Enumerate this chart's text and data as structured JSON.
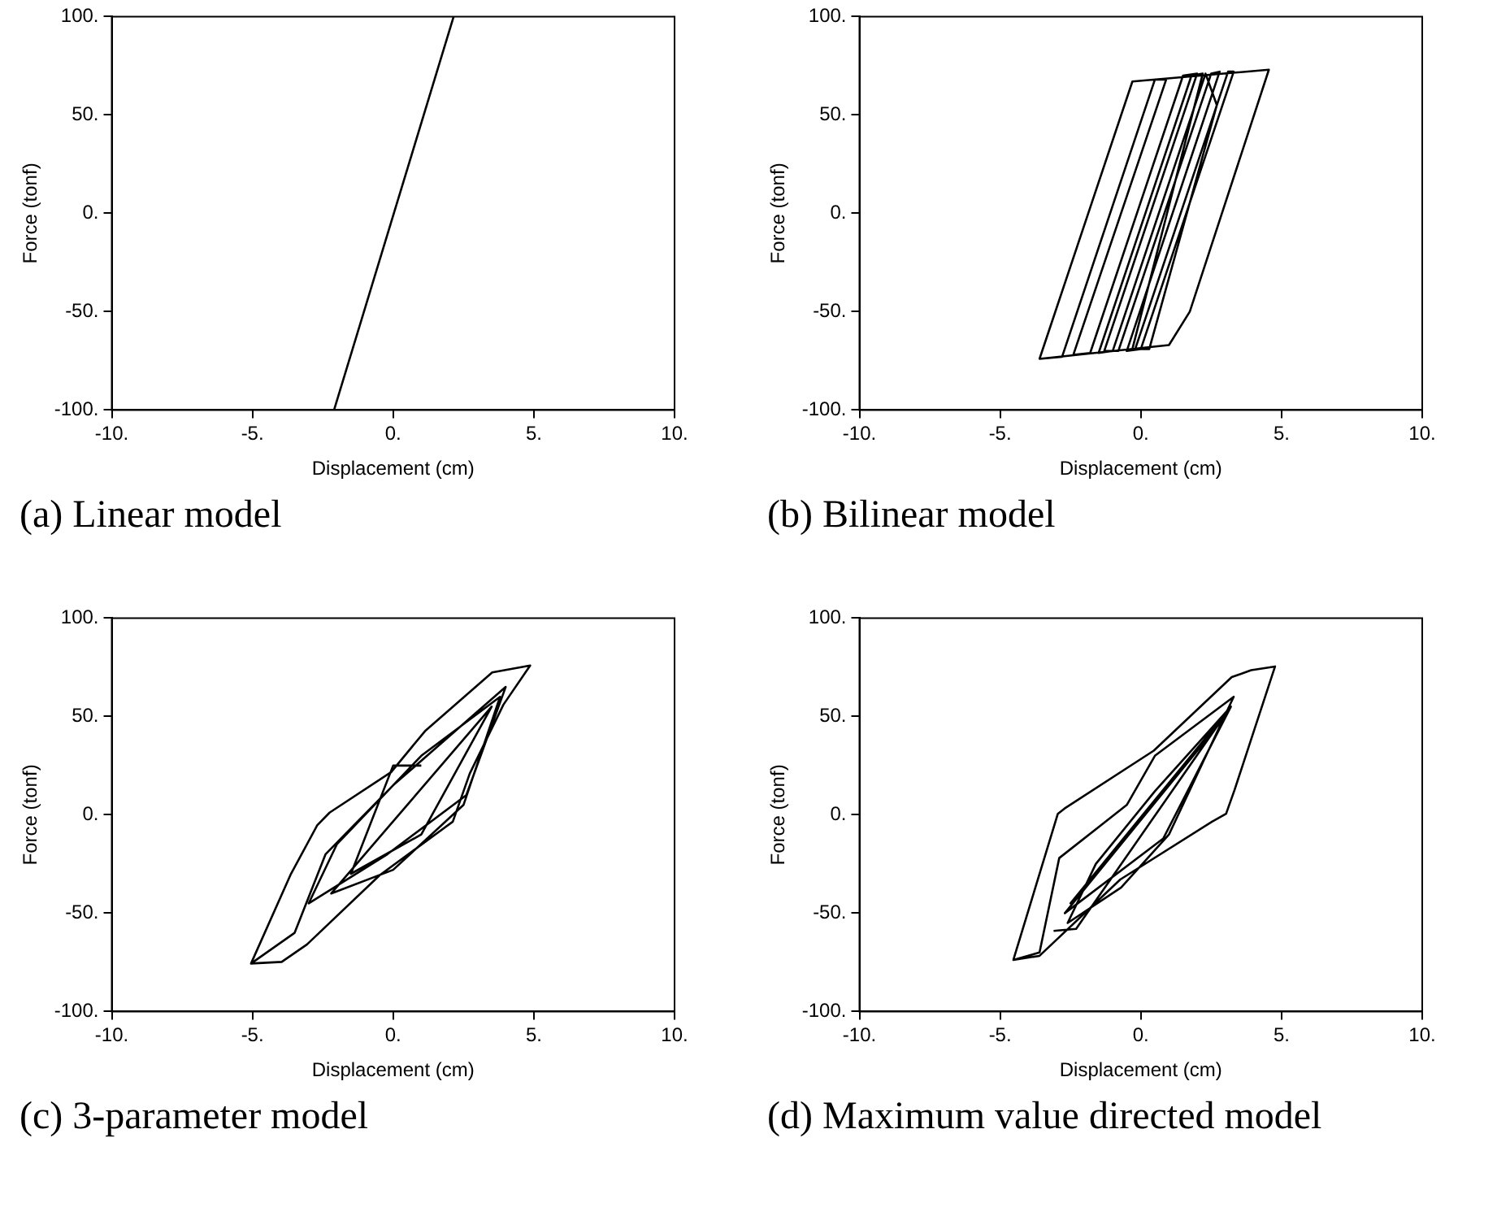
{
  "chart_data": [
    {
      "type": "line",
      "title": "(a) Linear model",
      "xlabel": "Displacement (cm)",
      "ylabel": "Force (tonf)",
      "xlim": [
        -10,
        10
      ],
      "ylim": [
        -100,
        100
      ],
      "xticks": [
        {
          "value": -10,
          "label": "-10."
        },
        {
          "value": -5,
          "label": "-5."
        },
        {
          "value": 0,
          "label": "0."
        },
        {
          "value": 5,
          "label": "5."
        },
        {
          "value": 10,
          "label": "10."
        }
      ],
      "yticks": [
        {
          "value": -100,
          "label": "-100."
        },
        {
          "value": -50,
          "label": "-50."
        },
        {
          "value": 0,
          "label": "0."
        },
        {
          "value": 50,
          "label": "50."
        },
        {
          "value": 100,
          "label": "100."
        }
      ],
      "grid": false,
      "legend": false,
      "marker": "none",
      "line_style": "solid",
      "series": [
        {
          "color": "#000000",
          "x": [
            -2.1,
            2.15
          ],
          "values": [
            -100,
            100
          ]
        }
      ]
    },
    {
      "type": "line",
      "title": "(b) Bilinear model",
      "xlabel": "Displacement (cm)",
      "ylabel": "Force (tonf)",
      "xlim": [
        -10,
        10
      ],
      "ylim": [
        -100,
        100
      ],
      "xticks": [
        {
          "value": -10,
          "label": "-10."
        },
        {
          "value": -5,
          "label": "-5."
        },
        {
          "value": 0,
          "label": "0."
        },
        {
          "value": 5,
          "label": "5."
        },
        {
          "value": 10,
          "label": "10."
        }
      ],
      "yticks": [
        {
          "value": -100,
          "label": "-100."
        },
        {
          "value": -50,
          "label": "-50."
        },
        {
          "value": 0,
          "label": "0."
        },
        {
          "value": 50,
          "label": "50."
        },
        {
          "value": 100,
          "label": "100."
        }
      ],
      "grid": false,
      "legend": false,
      "marker": "none",
      "line_style": "solid",
      "series": [
        {
          "color": "#000000",
          "x": [
            -3.6,
            -0.3,
            4.55,
            1.74,
            1.0,
            -3.6,
            -2.8,
            0.5,
            0.9,
            -2.4,
            -1.8,
            1.5,
            2.0,
            -1.3,
            -0.8,
            2.5,
            2.8,
            -0.5,
            0.0,
            3.3,
            3.1,
            -0.2,
            0.3,
            2.7,
            2.3,
            -1.0,
            -1.5,
            1.8,
            2.2,
            -0.3
          ],
          "values": [
            -74,
            67,
            73,
            -50,
            -67,
            -74,
            -73,
            68,
            68,
            -72,
            -71,
            70,
            71,
            -70,
            -70,
            71,
            72,
            -70,
            -69,
            72,
            72,
            -69,
            -69,
            55,
            71,
            -70,
            -71,
            70,
            71,
            -69
          ]
        }
      ]
    },
    {
      "type": "line",
      "title": "(c) 3-parameter model",
      "xlabel": "Displacement (cm)",
      "ylabel": "Force (tonf)",
      "xlim": [
        -10,
        10
      ],
      "ylim": [
        -100,
        100
      ],
      "xticks": [
        {
          "value": -10,
          "label": "-10."
        },
        {
          "value": -5,
          "label": "-5."
        },
        {
          "value": 0,
          "label": "0."
        },
        {
          "value": 5,
          "label": "5."
        },
        {
          "value": 10,
          "label": "10."
        }
      ],
      "yticks": [
        {
          "value": -100,
          "label": "-100."
        },
        {
          "value": -50,
          "label": "-50."
        },
        {
          "value": 0,
          "label": "0."
        },
        {
          "value": 50,
          "label": "50."
        },
        {
          "value": 100,
          "label": "100."
        }
      ],
      "grid": false,
      "legend": false,
      "marker": "none",
      "line_style": "solid",
      "series": [
        {
          "color": "#000000",
          "x": [
            -5.05,
            -3.65,
            -2.7,
            -2.26,
            -0.07,
            1.13,
            3.52,
            4.87,
            3.92,
            2.72,
            2.12,
            -0.47,
            -3.06,
            -3.96,
            -5.05,
            -3.5,
            -2.4,
            0.0,
            4.0,
            2.6,
            -0.2,
            -3.0,
            -2.0,
            1.0,
            3.8,
            2.5,
            0.0,
            -2.2,
            0.5,
            3.5,
            1.0,
            -1.5,
            0.0,
            1.0
          ],
          "values": [
            -75.6,
            -30.6,
            -5.4,
            1.1,
            21.7,
            42.5,
            72.4,
            75.9,
            56,
            20.9,
            -3.5,
            -30.6,
            -65.9,
            -74.8,
            -75.6,
            -60,
            -20,
            15,
            65,
            10,
            -20,
            -45,
            -15,
            30,
            60,
            5,
            -28,
            -40,
            5,
            55,
            -10,
            -30,
            25,
            25
          ]
        }
      ]
    },
    {
      "type": "line",
      "title": "(d) Maximum value directed model",
      "xlabel": "Displacement (cm)",
      "ylabel": "Force (tonf)",
      "xlim": [
        -10,
        10
      ],
      "ylim": [
        -100,
        100
      ],
      "xticks": [
        {
          "value": -10,
          "label": "-10."
        },
        {
          "value": -5,
          "label": "-5."
        },
        {
          "value": 0,
          "label": "0."
        },
        {
          "value": 5,
          "label": "5."
        },
        {
          "value": 10,
          "label": "10."
        }
      ],
      "yticks": [
        {
          "value": -100,
          "label": "-100."
        },
        {
          "value": -50,
          "label": "-50."
        },
        {
          "value": 0,
          "label": "0."
        },
        {
          "value": 50,
          "label": "50."
        },
        {
          "value": 100,
          "label": "100."
        }
      ],
      "grid": false,
      "legend": false,
      "marker": "none",
      "line_style": "solid",
      "series": [
        {
          "color": "#000000",
          "x": [
            -4.53,
            -2.95,
            -2.71,
            0.46,
            3.23,
            3.92,
            4.77,
            3.33,
            3.03,
            2.53,
            -0.73,
            -3.6,
            -4.53,
            -3.6,
            -2.9,
            -0.5,
            0.5,
            3.3,
            1.0,
            -0.7,
            -2.6,
            -1.6,
            0.5,
            3.2,
            0.8,
            -2.7,
            3.0,
            -2.5,
            3.1,
            -2.3,
            -3.1
          ],
          "values": [
            -73.8,
            0.5,
            3.2,
            32.6,
            70,
            73.5,
            75.4,
            12.6,
            0.5,
            -3.5,
            -32.9,
            -71.7,
            -73.8,
            -70,
            -22,
            5,
            30,
            60,
            -10,
            -37,
            -55,
            -25,
            12,
            55,
            -12,
            -50,
            50,
            -45,
            53,
            -58,
            -59
          ]
        }
      ]
    }
  ]
}
